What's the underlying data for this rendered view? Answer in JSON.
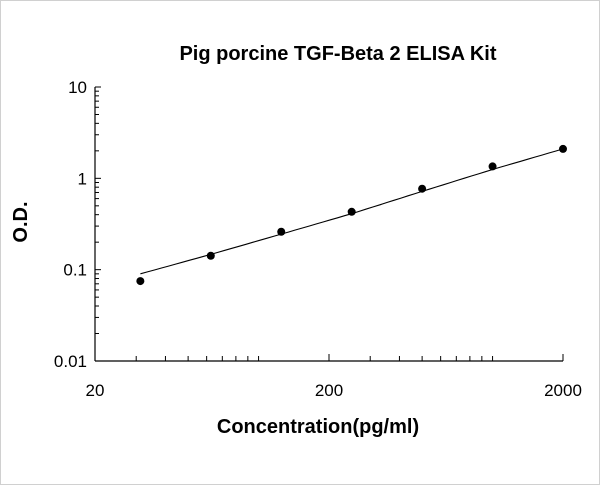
{
  "chart_data": {
    "type": "scatter",
    "title": "Pig porcine TGF-Beta 2 ELISA Kit",
    "xlabel": "Concentration(pg/ml)",
    "ylabel": "O.D.",
    "xscale": "log",
    "yscale": "log",
    "xlim": [
      20,
      2000
    ],
    "ylim": [
      0.01,
      10
    ],
    "xticks": [
      20,
      200,
      2000
    ],
    "xtick_labels": [
      "20",
      "200",
      "2000"
    ],
    "yticks": [
      0.01,
      0.1,
      1,
      10
    ],
    "ytick_labels": [
      "0.01",
      "0.1",
      "1",
      "10"
    ],
    "grid": false,
    "legend": "none",
    "marker_color": "#000000",
    "line_color": "#000000",
    "series": [
      {
        "x": [
          31.25,
          62.5,
          125,
          250,
          500,
          1000,
          2000
        ],
        "y": [
          0.075,
          0.142,
          0.26,
          0.43,
          0.77,
          1.35,
          2.1
        ]
      }
    ],
    "fit_curve": {
      "x": [
        31.25,
        62.5,
        125,
        250,
        500,
        1000,
        2000
      ],
      "y": [
        0.09,
        0.147,
        0.245,
        0.41,
        0.72,
        1.25,
        2.1
      ]
    }
  }
}
